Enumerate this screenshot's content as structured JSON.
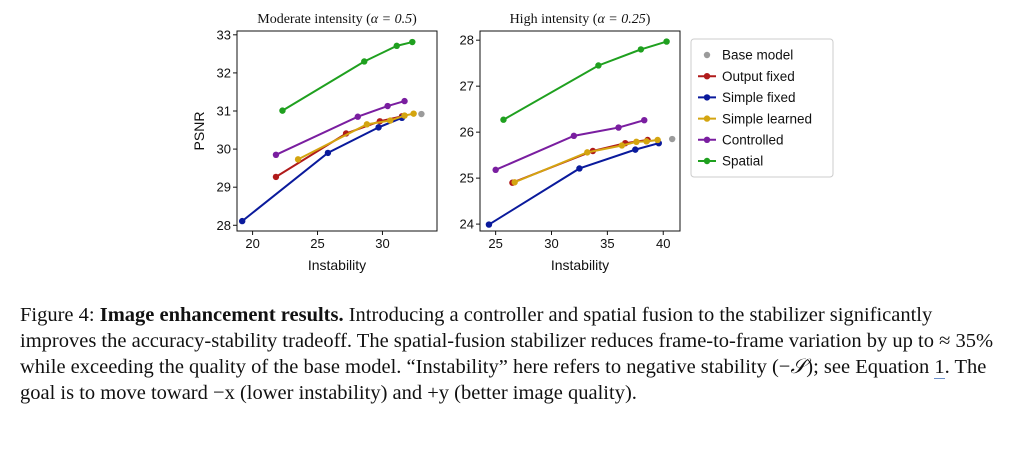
{
  "chart_data": [
    {
      "type": "line",
      "title_prefix": "Moderate intensity (",
      "title_alpha": "α = 0.5",
      "title_suffix": ")",
      "xlabel": "Instability",
      "ylabel": "PSNR",
      "xlim": [
        18.8,
        34.2
      ],
      "ylim": [
        27.85,
        33.1
      ],
      "xticks": [
        20,
        25,
        30
      ],
      "yticks": [
        28,
        29,
        30,
        31,
        32,
        33
      ],
      "grid": false,
      "series": [
        {
          "name": "Base model",
          "color": "#9b9b9b",
          "markers_only": true,
          "x": [
            33.0
          ],
          "y": [
            30.92
          ]
        },
        {
          "name": "Output fixed",
          "color": "#b01a1a",
          "x": [
            21.8,
            27.2,
            29.8,
            31.5
          ],
          "y": [
            29.27,
            30.41,
            30.73,
            30.86
          ]
        },
        {
          "name": "Simple fixed",
          "color": "#0a1a9c",
          "x": [
            19.2,
            25.8,
            29.7,
            31.5
          ],
          "y": [
            28.11,
            29.9,
            30.57,
            30.82
          ]
        },
        {
          "name": "Simple learned",
          "color": "#d4a510",
          "x": [
            23.5,
            28.8,
            30.6,
            31.7,
            32.4
          ],
          "y": [
            29.73,
            30.65,
            30.75,
            30.88,
            30.93
          ]
        },
        {
          "name": "Controlled",
          "color": "#7a1ea0",
          "x": [
            21.8,
            28.1,
            30.4,
            31.7
          ],
          "y": [
            29.85,
            30.85,
            31.13,
            31.26
          ]
        },
        {
          "name": "Spatial",
          "color": "#1fa01f",
          "x": [
            22.3,
            28.6,
            31.1,
            32.3
          ],
          "y": [
            31.01,
            32.3,
            32.71,
            32.81
          ]
        }
      ]
    },
    {
      "type": "line",
      "title_prefix": "High intensity (",
      "title_alpha": "α = 0.25",
      "title_suffix": ")",
      "xlabel": "Instability",
      "ylabel": "",
      "xlim": [
        23.6,
        41.5
      ],
      "ylim": [
        23.85,
        28.2
      ],
      "xticks": [
        25,
        30,
        35,
        40
      ],
      "yticks": [
        24,
        25,
        26,
        27,
        28
      ],
      "grid": false,
      "series": [
        {
          "name": "Base model",
          "color": "#9b9b9b",
          "markers_only": true,
          "x": [
            40.8
          ],
          "y": [
            25.85
          ]
        },
        {
          "name": "Output fixed",
          "color": "#b01a1a",
          "x": [
            26.5,
            33.7,
            36.6,
            38.6
          ],
          "y": [
            24.9,
            25.59,
            25.76,
            25.83
          ]
        },
        {
          "name": "Simple fixed",
          "color": "#0a1a9c",
          "x": [
            24.4,
            32.5,
            37.5,
            39.6
          ],
          "y": [
            23.99,
            25.21,
            25.62,
            25.76
          ]
        },
        {
          "name": "Simple learned",
          "color": "#d4a510",
          "x": [
            26.7,
            33.2,
            36.3,
            37.6,
            38.5,
            39.5
          ],
          "y": [
            24.91,
            25.56,
            25.71,
            25.79,
            25.8,
            25.83
          ]
        },
        {
          "name": "Controlled",
          "color": "#7a1ea0",
          "x": [
            25.0,
            32.0,
            36.0,
            38.3
          ],
          "y": [
            25.18,
            25.92,
            26.1,
            26.26
          ]
        },
        {
          "name": "Spatial",
          "color": "#1fa01f",
          "x": [
            25.7,
            34.2,
            38.0,
            40.3
          ],
          "y": [
            26.27,
            27.45,
            27.8,
            27.97
          ]
        }
      ]
    }
  ],
  "legend": {
    "items": [
      {
        "label": "Base model",
        "color": "#9b9b9b",
        "line": false
      },
      {
        "label": "Output fixed",
        "color": "#b01a1a",
        "line": true
      },
      {
        "label": "Simple fixed",
        "color": "#0a1a9c",
        "line": true
      },
      {
        "label": "Simple learned",
        "color": "#d4a510",
        "line": true
      },
      {
        "label": "Controlled",
        "color": "#7a1ea0",
        "line": true
      },
      {
        "label": "Spatial",
        "color": "#1fa01f",
        "line": true
      }
    ]
  },
  "caption": {
    "label": "Figure 4:",
    "bold": "Image enhancement results.",
    "text1": "Introducing a controller and spatial fusion to the stabilizer significantly improves the accuracy-stability tradeoff. The spatial-fusion stabilizer reduces frame-to-frame variation by up to ≈ 35% while exceeding the quality of the base model. “Instability” here refers to negative stability (−",
    "symbol": "𝒮",
    "text2": "); see Equation",
    "ref": "1",
    "text3": ". The goal is to move toward −x (lower instability) and +y (better image quality)."
  }
}
